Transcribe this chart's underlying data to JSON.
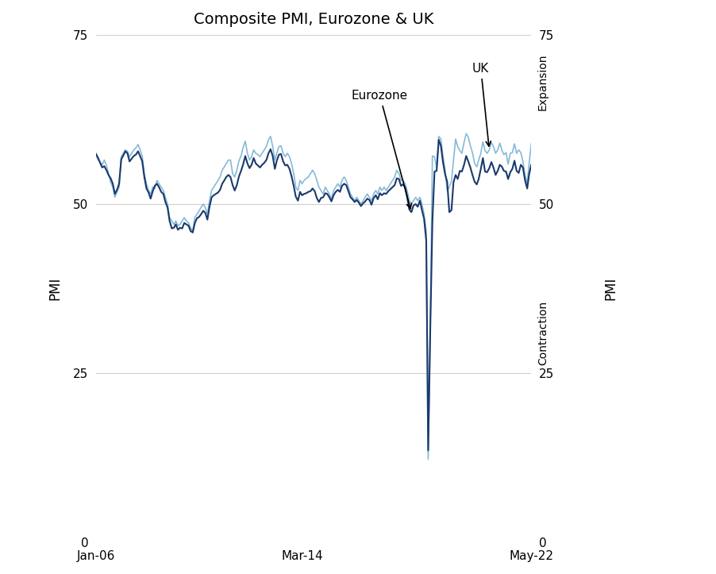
{
  "title": "Composite PMI, Eurozone & UK",
  "xlabel_left": "PMI",
  "xlabel_right": "PMI",
  "ylabel_expansion": "Expansion",
  "ylabel_contraction": "Contraction",
  "ylim": [
    0,
    75
  ],
  "yticks": [
    0,
    25,
    50,
    75
  ],
  "color_eurozone": "#1a3a6b",
  "color_uk": "#87b9d8",
  "annotation_eurozone": "Eurozone",
  "annotation_uk": "UK",
  "background_color": "#ffffff",
  "grid_color": "#cccccc",
  "eurozone_pmi": [
    57.4,
    56.8,
    56.1,
    55.4,
    55.6,
    55.0,
    54.3,
    53.8,
    53.0,
    51.5,
    52.1,
    53.0,
    56.6,
    57.2,
    57.8,
    57.5,
    56.3,
    56.7,
    57.1,
    57.3,
    57.8,
    57.1,
    56.3,
    54.0,
    52.3,
    51.7,
    50.8,
    51.9,
    52.7,
    53.0,
    52.5,
    51.8,
    51.5,
    50.3,
    49.5,
    47.5,
    46.4,
    46.5,
    47.0,
    46.2,
    46.5,
    46.4,
    47.2,
    47.0,
    46.8,
    46.0,
    45.8,
    47.2,
    47.9,
    48.1,
    48.5,
    49.0,
    48.7,
    47.7,
    49.6,
    51.0,
    51.3,
    51.5,
    51.7,
    52.1,
    53.0,
    53.5,
    54.0,
    54.3,
    54.0,
    52.8,
    52.0,
    52.8,
    54.1,
    54.9,
    55.9,
    57.1,
    56.0,
    55.3,
    55.8,
    56.8,
    56.0,
    55.7,
    55.4,
    55.8,
    56.1,
    56.5,
    57.5,
    58.1,
    57.1,
    55.2,
    56.4,
    57.3,
    57.4,
    56.3,
    55.7,
    55.8,
    55.2,
    54.1,
    52.7,
    51.1,
    50.5,
    51.8,
    51.3,
    51.5,
    51.6,
    51.8,
    51.9,
    52.3,
    51.9,
    50.9,
    50.3,
    50.9,
    51.0,
    51.6,
    51.5,
    51.0,
    50.4,
    51.3,
    51.8,
    52.1,
    51.8,
    52.7,
    53.0,
    52.8,
    51.9,
    51.0,
    50.7,
    50.3,
    50.6,
    50.2,
    49.7,
    50.1,
    50.4,
    50.8,
    50.6,
    49.9,
    50.9,
    51.3,
    50.7,
    51.6,
    51.3,
    51.6,
    51.5,
    51.9,
    52.2,
    52.5,
    52.8,
    53.8,
    53.7,
    52.7,
    52.9,
    52.5,
    51.0,
    49.2,
    48.8,
    49.8,
    50.0,
    49.6,
    50.5,
    49.1,
    47.8,
    44.6,
    13.6,
    31.9,
    47.4,
    54.8,
    54.9,
    59.5,
    58.6,
    56.2,
    54.4,
    53.3,
    48.8,
    49.1,
    53.2,
    54.3,
    53.7,
    54.9,
    54.8,
    55.8,
    57.1,
    56.3,
    55.4,
    54.3,
    53.3,
    52.9,
    53.7,
    55.2,
    56.8,
    54.8,
    54.7,
    55.3,
    56.2,
    55.4,
    54.3,
    54.9,
    55.8,
    55.5,
    54.9,
    54.8,
    53.7,
    54.7,
    55.2,
    56.4,
    54.9,
    54.6,
    55.8,
    55.4,
    53.5,
    52.3,
    54.4,
    55.8
  ],
  "uk_pmi": [
    57.2,
    56.5,
    56.2,
    55.8,
    56.5,
    55.7,
    54.5,
    53.2,
    52.5,
    51.0,
    51.8,
    52.5,
    57.0,
    57.5,
    58.0,
    57.8,
    57.0,
    57.5,
    58.0,
    58.3,
    58.8,
    58.0,
    57.1,
    54.5,
    53.0,
    52.0,
    51.5,
    52.5,
    52.3,
    53.5,
    53.0,
    52.5,
    52.0,
    51.0,
    50.0,
    48.0,
    47.5,
    47.0,
    47.5,
    46.8,
    47.0,
    47.5,
    48.0,
    47.5,
    47.2,
    46.5,
    46.0,
    48.0,
    48.5,
    49.0,
    49.5,
    50.0,
    49.5,
    48.5,
    50.5,
    52.0,
    52.5,
    53.0,
    53.5,
    54.0,
    55.0,
    55.5,
    56.0,
    56.5,
    56.5,
    54.5,
    54.0,
    55.0,
    56.4,
    57.1,
    58.4,
    59.3,
    57.5,
    56.5,
    57.0,
    58.0,
    57.5,
    57.3,
    57.0,
    57.5,
    58.0,
    58.5,
    59.5,
    60.0,
    58.5,
    56.5,
    57.5,
    58.5,
    58.6,
    57.5,
    57.0,
    57.5,
    57.0,
    56.0,
    54.5,
    52.5,
    52.0,
    53.5,
    53.0,
    53.5,
    53.8,
    54.0,
    54.5,
    55.0,
    54.5,
    53.5,
    52.5,
    52.0,
    51.5,
    52.5,
    52.0,
    51.5,
    50.8,
    52.0,
    52.5,
    53.0,
    52.5,
    53.5,
    54.0,
    53.5,
    52.5,
    51.5,
    51.0,
    50.5,
    51.0,
    50.5,
    50.0,
    50.5,
    51.0,
    51.5,
    51.0,
    50.5,
    51.5,
    52.0,
    51.5,
    52.5,
    52.0,
    52.5,
    52.0,
    52.5,
    53.0,
    53.5,
    54.0,
    55.0,
    54.5,
    53.5,
    53.5,
    53.0,
    52.0,
    50.5,
    50.0,
    50.5,
    51.0,
    50.5,
    51.0,
    50.0,
    48.5,
    46.0,
    12.3,
    32.0,
    57.1,
    57.0,
    55.4,
    60.0,
    59.6,
    57.1,
    55.0,
    52.0,
    52.5,
    53.4,
    56.4,
    59.6,
    58.5,
    57.9,
    57.5,
    59.1,
    60.4,
    59.9,
    58.6,
    57.6,
    56.0,
    55.5,
    56.5,
    57.5,
    59.2,
    57.9,
    57.5,
    58.0,
    59.1,
    58.5,
    57.5,
    58.0,
    59.0,
    57.9,
    57.3,
    57.6,
    55.9,
    57.5,
    57.6,
    58.9,
    57.5,
    58.0,
    57.6,
    56.3,
    54.2,
    53.1,
    56.0,
    58.9
  ],
  "x_tick_labels": [
    "Jan-06",
    "Mar-14",
    "May-22"
  ],
  "x_tick_positions": [
    0,
    98,
    196
  ],
  "arrow_expansion_up": true,
  "arrow_contraction_down": true,
  "linewidth_eurozone": 1.5,
  "linewidth_uk": 1.2
}
